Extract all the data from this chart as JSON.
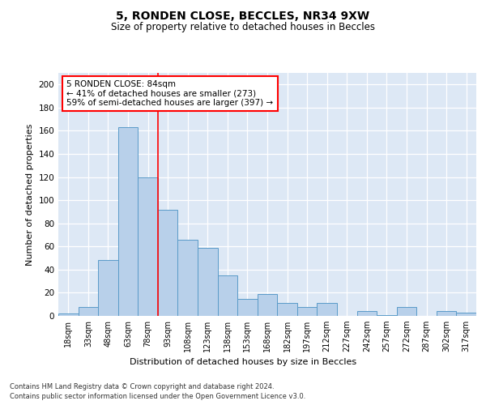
{
  "title1": "5, RONDEN CLOSE, BECCLES, NR34 9XW",
  "title2": "Size of property relative to detached houses in Beccles",
  "xlabel": "Distribution of detached houses by size in Beccles",
  "ylabel": "Number of detached properties",
  "footnote1": "Contains HM Land Registry data © Crown copyright and database right 2024.",
  "footnote2": "Contains public sector information licensed under the Open Government Licence v3.0.",
  "bar_labels": [
    "18sqm",
    "33sqm",
    "48sqm",
    "63sqm",
    "78sqm",
    "93sqm",
    "108sqm",
    "123sqm",
    "138sqm",
    "153sqm",
    "168sqm",
    "182sqm",
    "197sqm",
    "212sqm",
    "227sqm",
    "242sqm",
    "257sqm",
    "272sqm",
    "287sqm",
    "302sqm",
    "317sqm"
  ],
  "bar_values": [
    2,
    8,
    48,
    163,
    120,
    92,
    66,
    59,
    35,
    15,
    19,
    11,
    8,
    11,
    0,
    4,
    1,
    8,
    0,
    4,
    3
  ],
  "bar_color": "#b8d0ea",
  "bar_edge_color": "#5a9bc8",
  "background_color": "#dde8f5",
  "grid_color": "#ffffff",
  "vline_x": 4.5,
  "vline_color": "red",
  "annotation_line1": "5 RONDEN CLOSE: 84sqm",
  "annotation_line2": "← 41% of detached houses are smaller (273)",
  "annotation_line3": "59% of semi-detached houses are larger (397) →",
  "annotation_box_color": "red",
  "ylim": [
    0,
    210
  ],
  "yticks": [
    0,
    20,
    40,
    60,
    80,
    100,
    120,
    140,
    160,
    180,
    200
  ]
}
